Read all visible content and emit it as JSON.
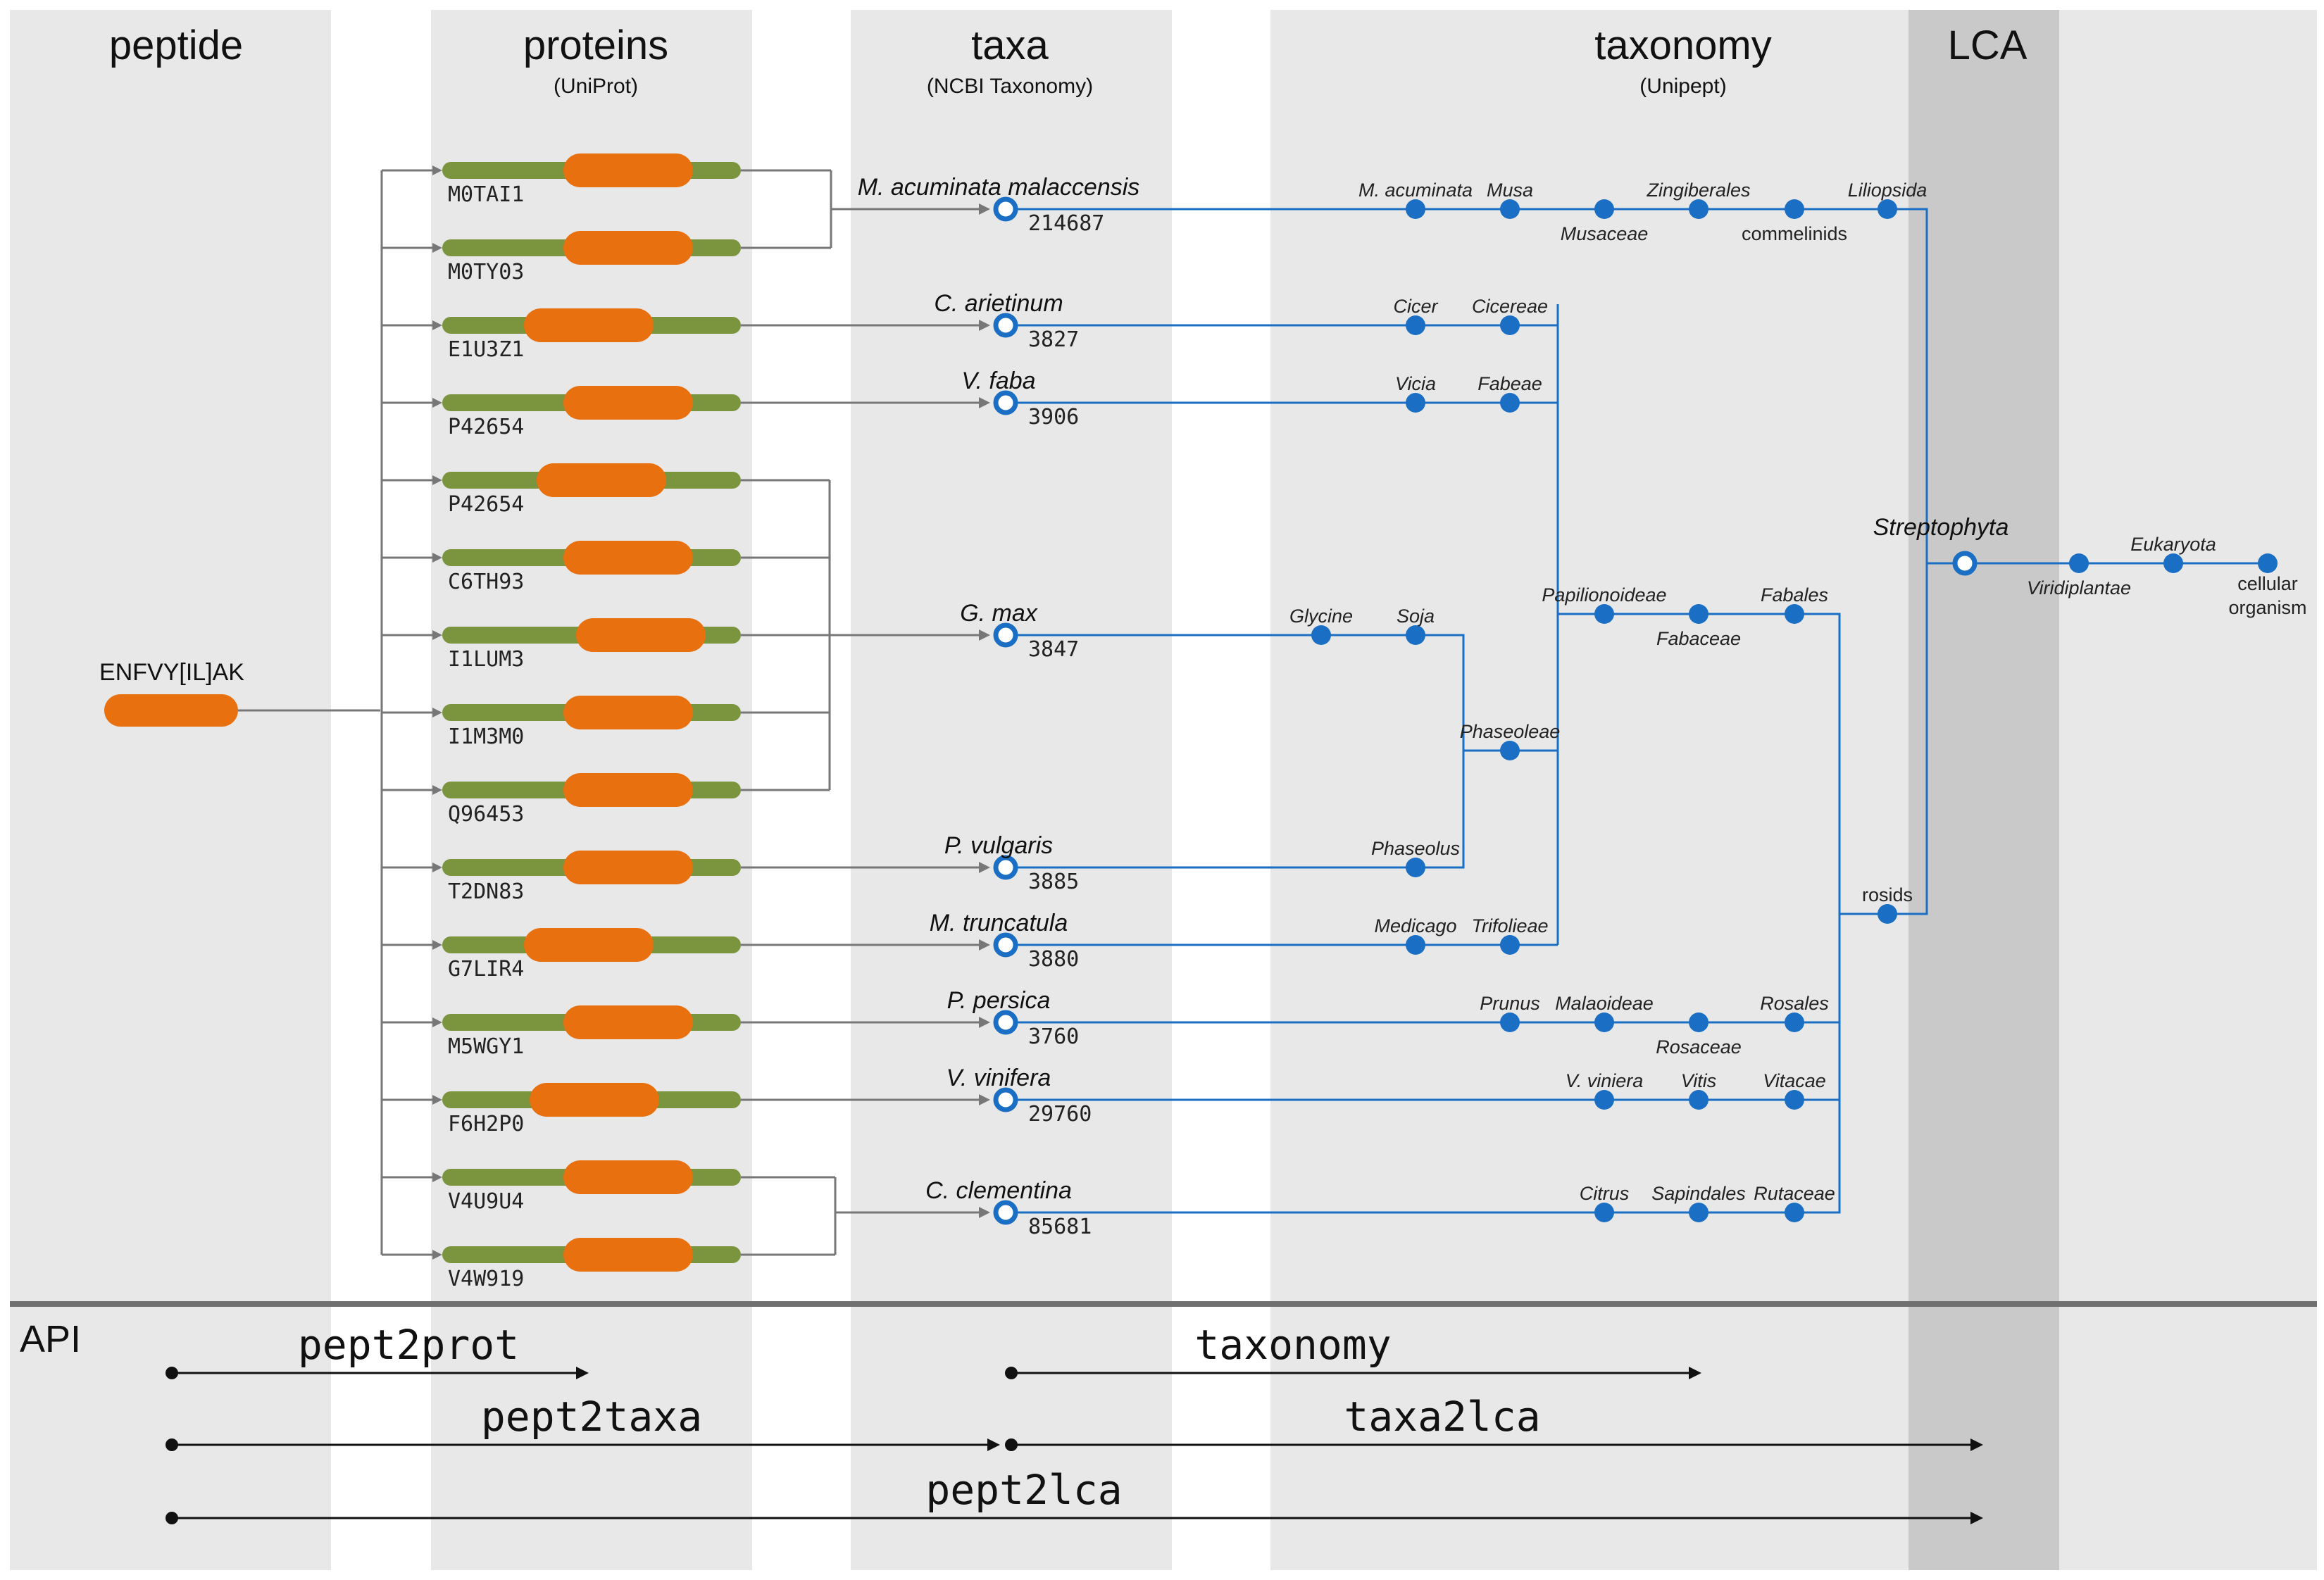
{
  "columns": {
    "peptide": {
      "title": "peptide"
    },
    "proteins": {
      "title": "proteins",
      "subtitle": "(UniProt)"
    },
    "taxa": {
      "title": "taxa",
      "subtitle": "(NCBI Taxonomy)"
    },
    "taxonomy": {
      "title": "taxonomy",
      "subtitle": "(Unipept)"
    },
    "lca": {
      "title": "LCA"
    }
  },
  "peptide": {
    "sequence": "ENFVY[IL]AK"
  },
  "proteins": [
    "M0TAI1",
    "M0TY03",
    "E1U3Z1",
    "P42654",
    "P42654",
    "C6TH93",
    "I1LUM3",
    "I1M3M0",
    "Q96453",
    "T2DN83",
    "G7LIR4",
    "M5WGY1",
    "F6H2P0",
    "V4U9U4",
    "V4W919"
  ],
  "taxa": [
    {
      "name": "M. acuminata malaccensis",
      "id": "214687"
    },
    {
      "name": "C. arietinum",
      "id": "3827"
    },
    {
      "name": "V. faba",
      "id": "3906"
    },
    {
      "name": "G. max",
      "id": "3847"
    },
    {
      "name": "P. vulgaris",
      "id": "3885"
    },
    {
      "name": "M. truncatula",
      "id": "3880"
    },
    {
      "name": "P. persica",
      "id": "3760"
    },
    {
      "name": "V. vinifera",
      "id": "29760"
    },
    {
      "name": "C. clementina",
      "id": "85681"
    }
  ],
  "taxonomy_nodes": {
    "m_acuminata": "M. acuminata",
    "musa": "Musa",
    "musaceae": "Musaceae",
    "zingiberales": "Zingiberales",
    "commelinids": "commelinids",
    "liliopsida": "Liliopsida",
    "cicer": "Cicer",
    "cicereae": "Cicereae",
    "vicia": "Vicia",
    "fabeae": "Fabeae",
    "glycine": "Glycine",
    "soja": "Soja",
    "phaseoleae": "Phaseoleae",
    "phaseolus": "Phaseolus",
    "medicago": "Medicago",
    "trifolieae": "Trifolieae",
    "papilionoideae": "Papilionoideae",
    "fabaceae": "Fabaceae",
    "fabales": "Fabales",
    "prunus": "Prunus",
    "malaoideae": "Malaoideae",
    "rosaceae": "Rosaceae",
    "rosales": "Rosales",
    "v_viniera": "V. viniera",
    "vitis": "Vitis",
    "vitacaea": "Vitacae",
    "citrus": "Citrus",
    "sapindales": "Sapindales",
    "rutaceae": "Rutaceae",
    "rosids": "rosids",
    "streptophyta": "Streptophyta",
    "viridiplantae": "Viridiplantae",
    "eukaryota": "Eukaryota",
    "cellular1": "cellular",
    "cellular2": "organism"
  },
  "api": {
    "label": "API",
    "endpoints": [
      "pept2prot",
      "taxonomy",
      "pept2taxa",
      "taxa2lca",
      "pept2lca"
    ]
  },
  "colors": {
    "panel": "#e8e8e8",
    "lca_panel": "#c9c9c9",
    "protein_bar": "#7b943e",
    "peptide": "#e8700f",
    "tree": "#1a6fc4",
    "connector": "#777777",
    "divider": "#707070"
  }
}
